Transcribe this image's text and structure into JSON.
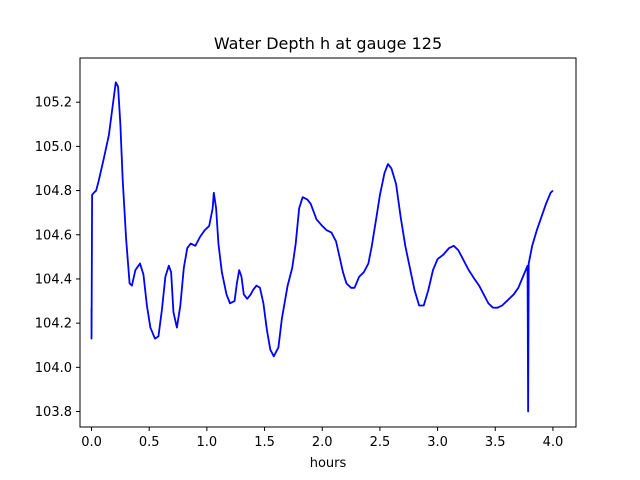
{
  "chart_data": {
    "type": "line",
    "title": "Water Depth h at gauge 125",
    "xlabel": "hours",
    "ylabel": "",
    "xlim": [
      -0.1,
      4.2
    ],
    "ylim": [
      103.73,
      105.4
    ],
    "grid": false,
    "x_ticks": [
      0.0,
      0.5,
      1.0,
      1.5,
      2.0,
      2.5,
      3.0,
      3.5,
      4.0
    ],
    "x_tick_labels": [
      "0.0",
      "0.5",
      "1.0",
      "1.5",
      "2.0",
      "2.5",
      "3.0",
      "3.5",
      "4.0"
    ],
    "y_ticks": [
      103.8,
      104.0,
      104.2,
      104.4,
      104.6,
      104.8,
      105.0,
      105.2
    ],
    "y_tick_labels": [
      "103.8",
      "104.0",
      "104.2",
      "104.4",
      "104.6",
      "104.8",
      "105.0",
      "105.2"
    ],
    "series": [
      {
        "color": "#0000ff",
        "points": [
          [
            0.0,
            104.27
          ],
          [
            0.0,
            104.13
          ],
          [
            0.005,
            104.78
          ],
          [
            0.02,
            104.79
          ],
          [
            0.04,
            104.8
          ],
          [
            0.06,
            104.84
          ],
          [
            0.1,
            104.93
          ],
          [
            0.15,
            105.05
          ],
          [
            0.18,
            105.17
          ],
          [
            0.21,
            105.29
          ],
          [
            0.23,
            105.27
          ],
          [
            0.25,
            105.1
          ],
          [
            0.27,
            104.85
          ],
          [
            0.3,
            104.58
          ],
          [
            0.33,
            104.38
          ],
          [
            0.35,
            104.37
          ],
          [
            0.38,
            104.44
          ],
          [
            0.42,
            104.47
          ],
          [
            0.45,
            104.42
          ],
          [
            0.48,
            104.28
          ],
          [
            0.51,
            104.18
          ],
          [
            0.55,
            104.13
          ],
          [
            0.58,
            104.14
          ],
          [
            0.61,
            104.26
          ],
          [
            0.64,
            104.41
          ],
          [
            0.67,
            104.46
          ],
          [
            0.69,
            104.43
          ],
          [
            0.71,
            104.25
          ],
          [
            0.74,
            104.18
          ],
          [
            0.77,
            104.28
          ],
          [
            0.8,
            104.45
          ],
          [
            0.83,
            104.54
          ],
          [
            0.86,
            104.56
          ],
          [
            0.9,
            104.55
          ],
          [
            0.94,
            104.59
          ],
          [
            0.98,
            104.62
          ],
          [
            1.02,
            104.64
          ],
          [
            1.05,
            104.72
          ],
          [
            1.06,
            104.79
          ],
          [
            1.08,
            104.72
          ],
          [
            1.1,
            104.56
          ],
          [
            1.13,
            104.43
          ],
          [
            1.17,
            104.33
          ],
          [
            1.2,
            104.29
          ],
          [
            1.24,
            104.3
          ],
          [
            1.26,
            104.38
          ],
          [
            1.28,
            104.44
          ],
          [
            1.3,
            104.41
          ],
          [
            1.32,
            104.33
          ],
          [
            1.35,
            104.31
          ],
          [
            1.38,
            104.33
          ],
          [
            1.4,
            104.35
          ],
          [
            1.43,
            104.37
          ],
          [
            1.46,
            104.36
          ],
          [
            1.49,
            104.29
          ],
          [
            1.52,
            104.17
          ],
          [
            1.55,
            104.08
          ],
          [
            1.58,
            104.05
          ],
          [
            1.62,
            104.09
          ],
          [
            1.65,
            104.22
          ],
          [
            1.7,
            104.37
          ],
          [
            1.74,
            104.45
          ],
          [
            1.77,
            104.56
          ],
          [
            1.8,
            104.72
          ],
          [
            1.83,
            104.77
          ],
          [
            1.87,
            104.76
          ],
          [
            1.9,
            104.74
          ],
          [
            1.95,
            104.67
          ],
          [
            2.0,
            104.64
          ],
          [
            2.04,
            104.62
          ],
          [
            2.08,
            104.61
          ],
          [
            2.12,
            104.57
          ],
          [
            2.15,
            104.5
          ],
          [
            2.18,
            104.43
          ],
          [
            2.21,
            104.38
          ],
          [
            2.25,
            104.36
          ],
          [
            2.28,
            104.36
          ],
          [
            2.32,
            104.41
          ],
          [
            2.36,
            104.43
          ],
          [
            2.4,
            104.47
          ],
          [
            2.43,
            104.55
          ],
          [
            2.47,
            104.68
          ],
          [
            2.5,
            104.78
          ],
          [
            2.54,
            104.88
          ],
          [
            2.57,
            104.92
          ],
          [
            2.6,
            104.9
          ],
          [
            2.64,
            104.83
          ],
          [
            2.68,
            104.68
          ],
          [
            2.72,
            104.55
          ],
          [
            2.76,
            104.45
          ],
          [
            2.8,
            104.35
          ],
          [
            2.84,
            104.28
          ],
          [
            2.88,
            104.28
          ],
          [
            2.92,
            104.35
          ],
          [
            2.96,
            104.44
          ],
          [
            3.0,
            104.49
          ],
          [
            3.05,
            104.51
          ],
          [
            3.1,
            104.54
          ],
          [
            3.14,
            104.55
          ],
          [
            3.18,
            104.53
          ],
          [
            3.22,
            104.49
          ],
          [
            3.27,
            104.44
          ],
          [
            3.32,
            104.4
          ],
          [
            3.36,
            104.37
          ],
          [
            3.4,
            104.33
          ],
          [
            3.44,
            104.29
          ],
          [
            3.48,
            104.27
          ],
          [
            3.52,
            104.27
          ],
          [
            3.56,
            104.28
          ],
          [
            3.6,
            104.3
          ],
          [
            3.66,
            104.33
          ],
          [
            3.7,
            104.36
          ],
          [
            3.74,
            104.41
          ],
          [
            3.78,
            104.46
          ],
          [
            3.785,
            103.8
          ],
          [
            3.79,
            104.47
          ],
          [
            3.82,
            104.55
          ],
          [
            3.86,
            104.62
          ],
          [
            3.9,
            104.68
          ],
          [
            3.94,
            104.74
          ],
          [
            3.98,
            104.79
          ],
          [
            4.0,
            104.8
          ]
        ]
      }
    ]
  }
}
